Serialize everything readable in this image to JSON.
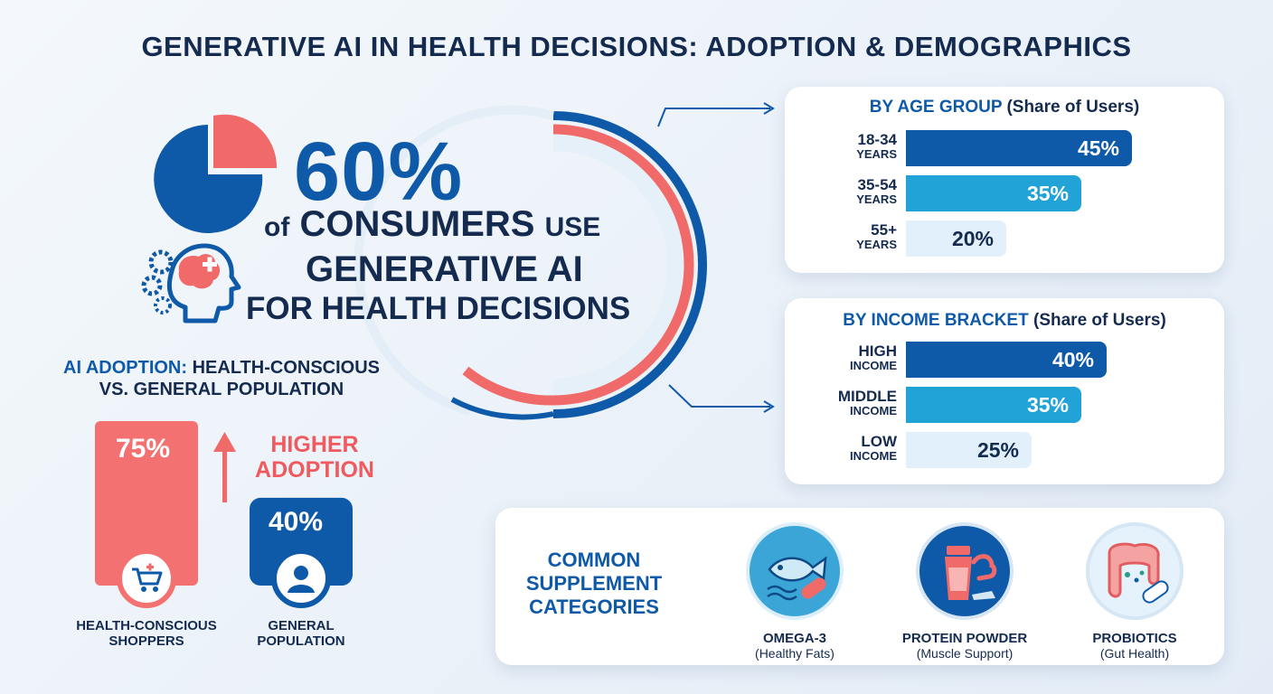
{
  "title": "GENERATIVE AI IN HEALTH DECISIONS: ADOPTION & DEMOGRAPHICS",
  "colors": {
    "navy": "#142b4f",
    "blue": "#0f5aa8",
    "teal": "#22a3d8",
    "light": "#e1f0fb",
    "coral": "#f06a6a"
  },
  "hero": {
    "percent": "60%",
    "line1_of": "of",
    "line1_main": "CONSUMERS",
    "line1_use": "USE",
    "line2": "GENERATIVE AI",
    "line3": "FOR HEALTH DECISIONS",
    "icons": [
      "pie-chart-icon",
      "ai-brain-head-icon"
    ]
  },
  "adoption": {
    "title_highlight": "AI ADOPTION:",
    "title_rest": "HEALTH-CONSCIOUS",
    "title_line2": "VS. GENERAL POPULATION",
    "callout": "HIGHER ADOPTION",
    "chart_data": {
      "type": "bar",
      "categories": [
        "HEALTH-CONSCIOUS SHOPPERS",
        "GENERAL POPULATION"
      ],
      "values": [
        75,
        40
      ],
      "unit": "%",
      "value_labels": [
        "75%",
        "40%"
      ],
      "label_lines": [
        [
          "HEALTH-CONSCIOUS",
          "SHOPPERS"
        ],
        [
          "GENERAL",
          "POPULATION"
        ]
      ],
      "icons": [
        "shopping-cart-icon",
        "person-icon"
      ]
    }
  },
  "age_card": {
    "title_highlight": "BY AGE GROUP",
    "title_rest": "(Share of Users)",
    "chart_data": {
      "type": "bar",
      "orientation": "horizontal",
      "categories": [
        "18-34 YEARS",
        "35-54 YEARS",
        "55+ YEARS"
      ],
      "values": [
        45,
        35,
        20
      ],
      "value_labels": [
        "45%",
        "35%",
        "20%"
      ],
      "cat_lines": [
        [
          "18-34",
          "YEARS"
        ],
        [
          "35-54",
          "YEARS"
        ],
        [
          "55+",
          "YEARS"
        ]
      ]
    }
  },
  "income_card": {
    "title_highlight": "BY INCOME BRACKET",
    "title_rest": "(Share of Users)",
    "chart_data": {
      "type": "bar",
      "orientation": "horizontal",
      "categories": [
        "HIGH INCOME",
        "MIDDLE INCOME",
        "LOW INCOME"
      ],
      "values": [
        40,
        35,
        25
      ],
      "value_labels": [
        "40%",
        "35%",
        "25%"
      ],
      "cat_lines": [
        [
          "HIGH",
          "INCOME"
        ],
        [
          "MIDDLE",
          "INCOME"
        ],
        [
          "LOW",
          "INCOME"
        ]
      ]
    }
  },
  "supplements": {
    "title_lines": [
      "COMMON",
      "SUPPLEMENT",
      "CATEGORIES"
    ],
    "items": [
      {
        "name": "OMEGA-3",
        "sub": "(Healthy Fats)",
        "icon": "fish-capsule-icon"
      },
      {
        "name": "PROTEIN POWDER",
        "sub": "(Muscle Support)",
        "icon": "protein-shaker-icon"
      },
      {
        "name": "PROBIOTICS",
        "sub": "(Gut Health)",
        "icon": "gut-capsule-icon"
      }
    ]
  }
}
